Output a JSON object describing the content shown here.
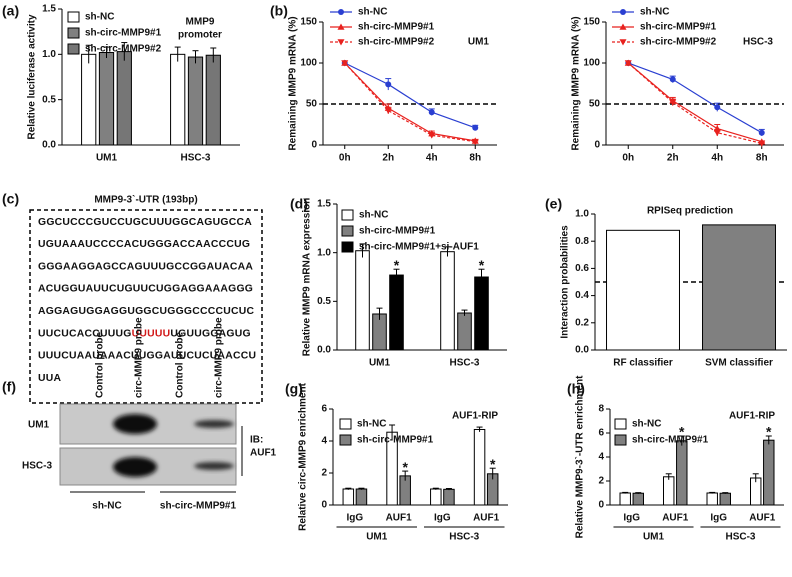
{
  "chart_data": [
    {
      "type": "bar",
      "panel_label": "(a)",
      "ylabel": "Relative luciferase activity",
      "annotation": [
        "MMP9",
        "promoter"
      ],
      "categories": [
        "UM1",
        "HSC-3"
      ],
      "series": [
        {
          "name": "sh-NC",
          "color": "#ffffff",
          "values": [
            1.0,
            1.0
          ],
          "errors": [
            0.1,
            0.08
          ]
        },
        {
          "name": "sh-circ-MMP9#1",
          "color": "#808080",
          "values": [
            1.02,
            0.97
          ],
          "errors": [
            0.06,
            0.07
          ]
        },
        {
          "name": "sh-circ-MMP9#2",
          "color": "#767676",
          "values": [
            1.03,
            0.99
          ],
          "errors": [
            0.1,
            0.08
          ]
        }
      ],
      "ylim": [
        0,
        1.5
      ],
      "yticks": [
        {
          "value": 0,
          "label": "0.0"
        },
        0.5,
        {
          "value": 1,
          "label": "1.0"
        },
        1.5
      ]
    },
    {
      "type": "line",
      "panel_label": "(b)",
      "ylabel": "Remaining MMP9 mRNA (%)",
      "annotation": "UM1",
      "categories": [
        "0h",
        "2h",
        "4h",
        "8h"
      ],
      "series": [
        {
          "name": "sh-NC",
          "color": "#2a3fd1",
          "marker": "circle",
          "values": [
            100,
            74,
            40,
            21
          ],
          "errors": [
            0,
            7,
            4,
            3
          ]
        },
        {
          "name": "sh-circ-MMP9#1",
          "color": "#e8221f",
          "marker": "triangle",
          "values": [
            100,
            45,
            14,
            5
          ],
          "errors": [
            0,
            5,
            3,
            1
          ]
        },
        {
          "name": "sh-circ-MMP9#2",
          "color": "#e8221f",
          "marker": "triangle-down",
          "dash": true,
          "values": [
            100,
            42,
            12,
            4
          ],
          "errors": [
            0,
            4,
            3,
            1
          ]
        }
      ],
      "ylim": [
        0,
        150
      ],
      "yticks": [
        0,
        50,
        100,
        150
      ],
      "reference_line": 50
    },
    {
      "type": "line",
      "ylabel": "Remaining MMP9 mRNA (%)",
      "annotation": "HSC-3",
      "categories": [
        "0h",
        "2h",
        "4h",
        "8h"
      ],
      "series": [
        {
          "name": "sh-NC",
          "color": "#2a3fd1",
          "marker": "circle",
          "values": [
            100,
            80,
            46,
            15
          ],
          "errors": [
            0,
            4,
            5,
            4
          ]
        },
        {
          "name": "sh-circ-MMP9#1",
          "color": "#e8221f",
          "marker": "triangle",
          "values": [
            100,
            54,
            20,
            4
          ],
          "errors": [
            0,
            4,
            5,
            1
          ]
        },
        {
          "name": "sh-circ-MMP9#2",
          "color": "#e8221f",
          "marker": "triangle-down",
          "dash": true,
          "values": [
            100,
            52,
            15,
            2
          ],
          "errors": [
            0,
            4,
            4,
            1
          ]
        }
      ],
      "ylim": [
        0,
        150
      ],
      "yticks": [
        0,
        50,
        100,
        150
      ],
      "reference_line": 50
    },
    {
      "type": "bar",
      "panel_label": "(d)",
      "ylabel": "Relative MMP9 mRNA expression",
      "categories": [
        "UM1",
        "HSC-3"
      ],
      "series": [
        {
          "name": "sh-NC",
          "color": "#ffffff",
          "values": [
            1.02,
            1.01
          ],
          "errors": [
            0.07,
            0.05
          ]
        },
        {
          "name": "sh-circ-MMP9#1",
          "color": "#808080",
          "values": [
            0.37,
            0.38
          ],
          "errors": [
            0.06,
            0.03
          ]
        },
        {
          "name": "sh-circ-MMP9#1+si-AUF1",
          "color": "#000000",
          "values": [
            0.77,
            0.75
          ],
          "errors": [
            0.06,
            0.08
          ],
          "significance": [
            "*",
            "*"
          ]
        }
      ],
      "ylim": [
        0,
        1.5
      ],
      "yticks": [
        {
          "value": 0,
          "label": "0.0"
        },
        0.5,
        {
          "value": 1,
          "label": "1.0"
        },
        1.5
      ]
    },
    {
      "type": "bar",
      "panel_label": "(e)",
      "title": "RPISeq prediction",
      "ylabel": "Interaction probabilities",
      "categories": [
        "RF classifier",
        "SVM classifier"
      ],
      "values": [
        0.88,
        0.92
      ],
      "colors": [
        "#ffffff",
        "#808080"
      ],
      "ylim": [
        0,
        1
      ],
      "yticks": [
        {
          "value": 0,
          "label": "0.0"
        },
        0.2,
        0.4,
        0.6,
        0.8,
        {
          "value": 1,
          "label": "1.0"
        }
      ],
      "reference_line": 0.5
    },
    {
      "type": "bar",
      "panel_label": "(g)",
      "title": "AUF1-RIP",
      "ylabel": "Relative circ-MMP9 enrichment",
      "categories": [
        "IgG",
        "AUF1",
        "IgG",
        "AUF1"
      ],
      "group_labels": [
        "UM1",
        "HSC-3"
      ],
      "series": [
        {
          "name": "sh-NC",
          "color": "#ffffff",
          "values": [
            1.0,
            4.55,
            1.0,
            4.72
          ],
          "errors": [
            0.05,
            0.45,
            0.05,
            0.15
          ]
        },
        {
          "name": "sh-circ-MMP9#1",
          "color": "#808080",
          "values": [
            1.0,
            1.82,
            0.98,
            1.95
          ],
          "errors": [
            0.05,
            0.3,
            0.05,
            0.35
          ],
          "significance": [
            null,
            "*",
            null,
            "*"
          ]
        }
      ],
      "ylim": [
        0,
        6
      ],
      "yticks": [
        0,
        2,
        4,
        6
      ]
    },
    {
      "type": "bar",
      "panel_label": "(h)",
      "title": "AUF1-RIP",
      "ylabel": "Relative MMP9-3`-UTR enrichment",
      "categories": [
        "IgG",
        "AUF1",
        "IgG",
        "AUF1"
      ],
      "group_labels": [
        "UM1",
        "HSC-3"
      ],
      "series": [
        {
          "name": "sh-NC",
          "color": "#ffffff",
          "values": [
            1.0,
            2.35,
            1.0,
            2.25
          ],
          "errors": [
            0.05,
            0.25,
            0.05,
            0.35
          ]
        },
        {
          "name": "sh-circ-MMP9#1",
          "color": "#808080",
          "values": [
            0.98,
            5.35,
            0.98,
            5.4
          ],
          "errors": [
            0.05,
            0.4,
            0.05,
            0.35
          ],
          "significance": [
            null,
            "*",
            null,
            "*"
          ]
        }
      ],
      "ylim": [
        0,
        8
      ],
      "yticks": [
        0,
        2,
        4,
        6,
        8
      ]
    }
  ],
  "sequence_panel": {
    "panel_label": "(c)",
    "title": "MMP9-3`-UTR (193bp)",
    "lines": [
      "GGCUCCCGUCCUGCUUUGGCAGUGCCA",
      "UGUAAAUCCCCACUGGGACCAACCCUG",
      "GGGAAGGAGCCAGUUUGCCGGAUACAA",
      "ACUGGUAUUCUGUUCUGGAGGAAAGGG",
      "AGGAGUGGAGGUGGCUGGGCCCCUCUC",
      {
        "before": "UUCUCACCUUUG",
        "highlight": "UUUUU",
        "after": "UGUUGGAGUG"
      },
      "UUUCUAAUAAACUUGGAUUCUCUAACCU",
      "UUA"
    ]
  },
  "blot_panel": {
    "panel_label": "(f)",
    "lanes": [
      "Control probe",
      "circ-MMP9 probe",
      "Control probe",
      "circ-MMP9 probe"
    ],
    "rows": [
      "UM1",
      "HSC-3"
    ],
    "antibody": [
      "IB:",
      "AUF1"
    ],
    "groups": [
      "sh-NC",
      "sh-circ-MMP9#1"
    ]
  }
}
